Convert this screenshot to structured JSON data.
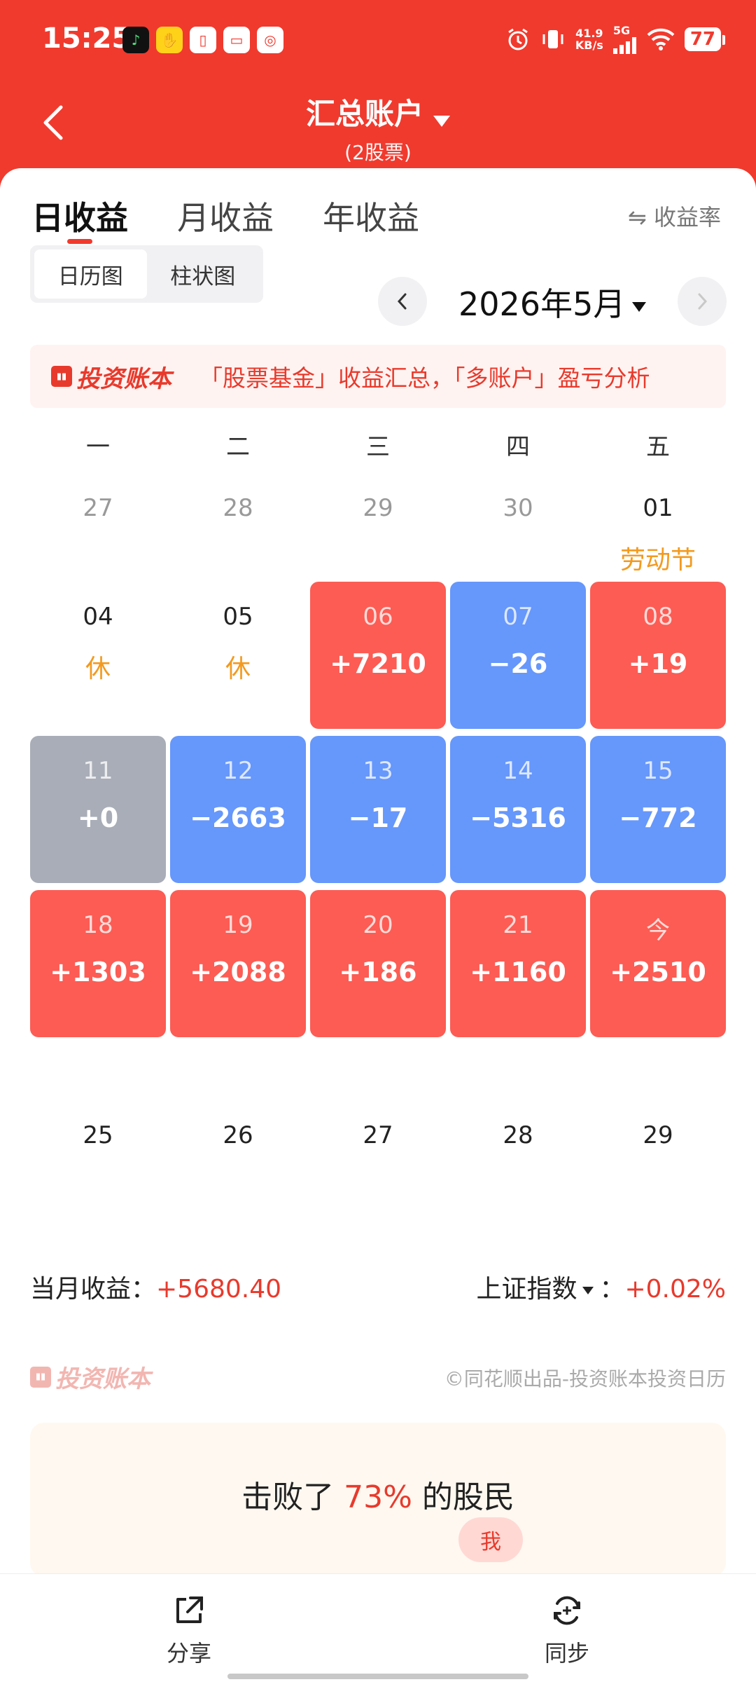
{
  "status_bar": {
    "time": "15:25",
    "net_speed_value": "41.9",
    "net_speed_unit": "KB/s",
    "signal_label": "5G",
    "battery": "77"
  },
  "header": {
    "title": "汇总账户",
    "subtitle": "(2股票)"
  },
  "tabs": [
    "日收益",
    "月收益",
    "年收益"
  ],
  "rate_toggle": "⇋ 收益率",
  "view_switch": [
    "日历图",
    "柱状图"
  ],
  "month": "2026年5月",
  "banner": {
    "brand": "投资账本",
    "text": "「股票基金」收益汇总，「多账户」盈亏分析"
  },
  "weekdays": [
    "一",
    "二",
    "三",
    "四",
    "五"
  ],
  "calendar": [
    {
      "day": "27",
      "value": "",
      "note": "",
      "kind": "prev"
    },
    {
      "day": "28",
      "value": "",
      "note": "",
      "kind": "prev"
    },
    {
      "day": "29",
      "value": "",
      "note": "",
      "kind": "prev"
    },
    {
      "day": "30",
      "value": "",
      "note": "",
      "kind": "prev"
    },
    {
      "day": "01",
      "value": "",
      "note": "劳动节",
      "kind": "plain"
    },
    {
      "day": "04",
      "value": "",
      "note": "休",
      "kind": "plain"
    },
    {
      "day": "05",
      "value": "",
      "note": "休",
      "kind": "plain"
    },
    {
      "day": "06",
      "value": "+7210",
      "note": "",
      "kind": "red"
    },
    {
      "day": "07",
      "value": "−26",
      "note": "",
      "kind": "blue"
    },
    {
      "day": "08",
      "value": "+19",
      "note": "",
      "kind": "red"
    },
    {
      "day": "11",
      "value": "+0",
      "note": "",
      "kind": "gray"
    },
    {
      "day": "12",
      "value": "−2663",
      "note": "",
      "kind": "blue"
    },
    {
      "day": "13",
      "value": "−17",
      "note": "",
      "kind": "blue"
    },
    {
      "day": "14",
      "value": "−5316",
      "note": "",
      "kind": "blue"
    },
    {
      "day": "15",
      "value": "−772",
      "note": "",
      "kind": "blue"
    },
    {
      "day": "18",
      "value": "+1303",
      "note": "",
      "kind": "red"
    },
    {
      "day": "19",
      "value": "+2088",
      "note": "",
      "kind": "red"
    },
    {
      "day": "20",
      "value": "+186",
      "note": "",
      "kind": "red"
    },
    {
      "day": "21",
      "value": "+1160",
      "note": "",
      "kind": "red"
    },
    {
      "day": "今",
      "value": "+2510",
      "note": "",
      "kind": "red"
    },
    {
      "day": "25",
      "value": "",
      "note": "",
      "kind": "plain"
    },
    {
      "day": "26",
      "value": "",
      "note": "",
      "kind": "plain"
    },
    {
      "day": "27",
      "value": "",
      "note": "",
      "kind": "plain"
    },
    {
      "day": "28",
      "value": "",
      "note": "",
      "kind": "plain"
    },
    {
      "day": "29",
      "value": "",
      "note": "",
      "kind": "plain"
    }
  ],
  "summary": {
    "month_label": "当月收益：",
    "month_value": "+5680.40",
    "index_label": "上证指数",
    "index_sep": "：",
    "index_value": "+0.02%"
  },
  "footer": {
    "brand": "投资账本",
    "credit": "©同花顺出品-投资账本投资日历"
  },
  "beat": {
    "prefix": "击败了",
    "percent": "73%",
    "suffix": "的股民",
    "me": "我"
  },
  "bottom_bar": {
    "share": "分享",
    "sync": "同步"
  },
  "colors": {
    "brand_red": "#f03a2e",
    "gain": "#fc5c54",
    "loss": "#6697fb",
    "flat": "#a8adb7",
    "holiday": "#f39a1e"
  }
}
